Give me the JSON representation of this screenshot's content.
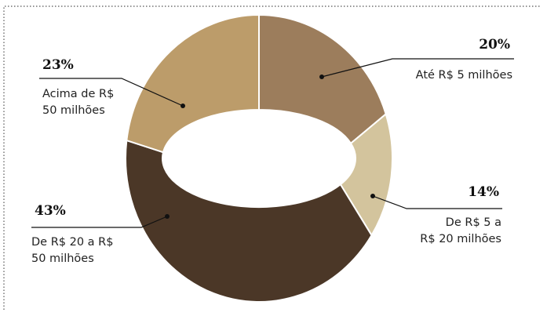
{
  "chart_data": {
    "type": "donut",
    "categories": [
      "Até R$ 5 milhões",
      "De R$ 5 a\nR$ 20 milhões",
      "De R$ 20 a R$\n50 milhões",
      "Acima de R$\n50 milhões"
    ],
    "values": [
      20,
      14,
      43,
      23
    ],
    "value_labels": [
      "20%",
      "14%",
      "43%",
      "23%"
    ],
    "colors": [
      "#9c7d5c",
      "#d3c49d",
      "#4b3727",
      "#bc9c6a"
    ]
  }
}
